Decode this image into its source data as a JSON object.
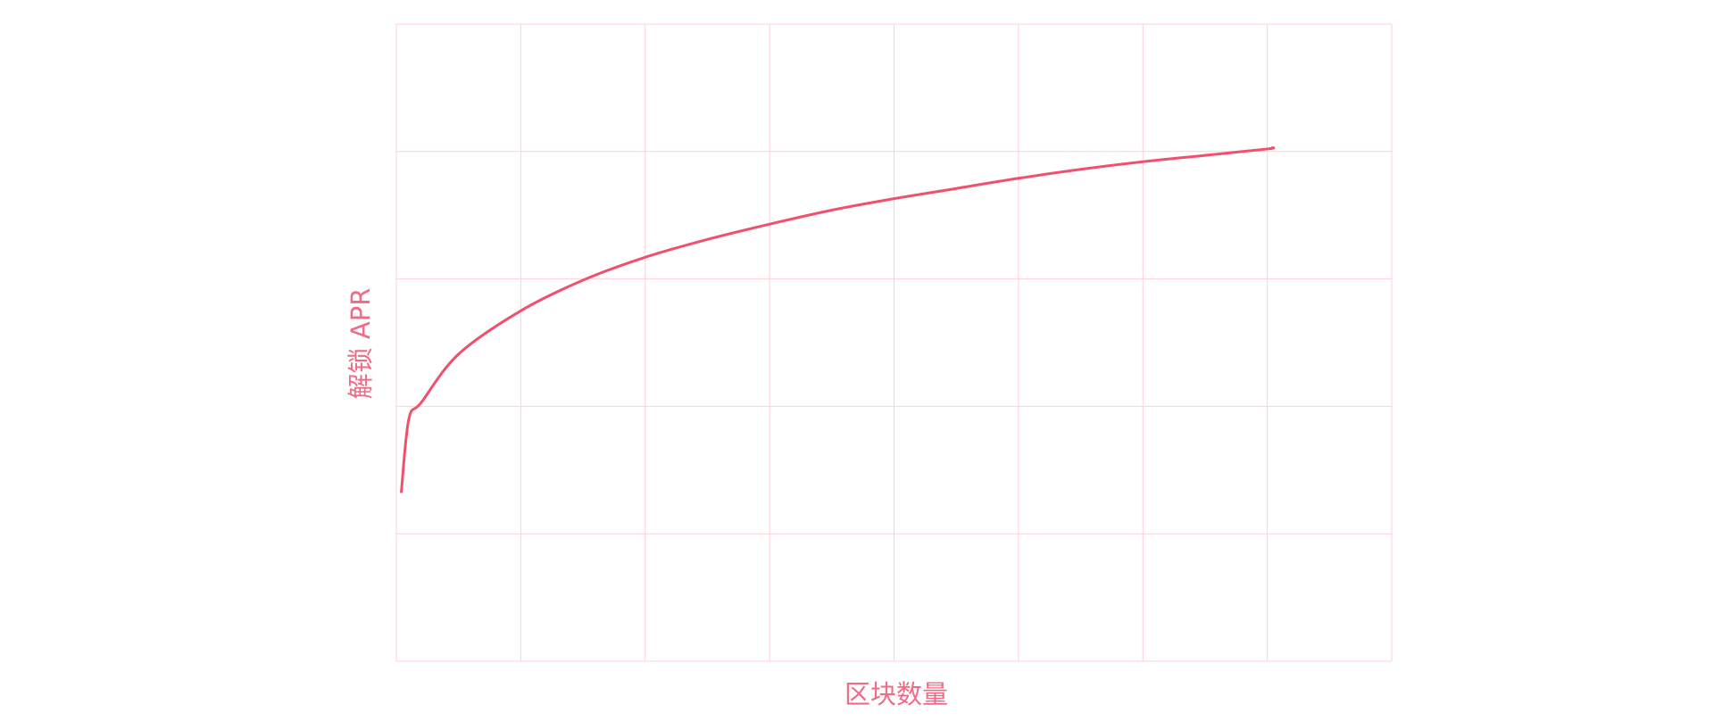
{
  "chart_data": {
    "type": "line",
    "title": "",
    "xlabel": "区块数量",
    "ylabel": "解锁 APR",
    "xlim": [
      0,
      8
    ],
    "ylim": [
      0,
      5
    ],
    "grid": true,
    "x_divisions": 8,
    "y_divisions": 5,
    "series": [
      {
        "x": [
          0.04,
          0.1,
          0.2,
          0.5,
          1,
          1.5,
          2,
          2.5,
          3,
          3.5,
          4,
          4.5,
          5,
          5.5,
          6,
          6.5,
          7,
          7.04
        ],
        "y": [
          1.33,
          1.9,
          2.03,
          2.41,
          2.75,
          2.99,
          3.17,
          3.31,
          3.43,
          3.54,
          3.63,
          3.71,
          3.79,
          3.86,
          3.92,
          3.97,
          4.02,
          4.03
        ]
      }
    ],
    "colors": {
      "line": "#f0506e",
      "grid": "#ffd0d8",
      "label": "#f06b85"
    }
  }
}
